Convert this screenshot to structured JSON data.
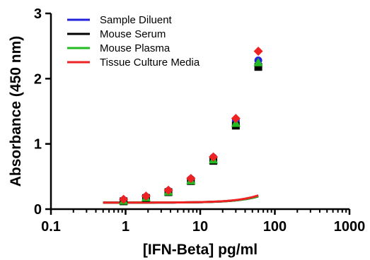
{
  "chart_data": {
    "type": "scatter",
    "xlabel": "[IFN-Beta] pg/ml",
    "ylabel": "Absorbance (450 nm)",
    "xscale": "log",
    "xlim": [
      0.1,
      1000
    ],
    "ylim": [
      0,
      3
    ],
    "x_ticks": [
      "0.1",
      "1",
      "10",
      "100",
      "1000"
    ],
    "y_ticks": [
      "0",
      "1",
      "2",
      "3"
    ],
    "grid": false,
    "legend_position": "top-left",
    "curve_x_range": [
      0.5,
      60
    ],
    "series": [
      {
        "name": "Sample Diluent",
        "color": "#2222dd",
        "marker": "circle",
        "x": [
          0.94,
          1.88,
          3.75,
          7.5,
          15,
          30,
          60
        ],
        "y": [
          0.14,
          0.19,
          0.28,
          0.46,
          0.79,
          1.36,
          2.28
        ],
        "curve": {
          "bottom": 0.1,
          "top": 20.0,
          "ec50": 2000,
          "hill": 1.5
        }
      },
      {
        "name": "Mouse Serum",
        "color": "#000000",
        "marker": "square",
        "x": [
          0.94,
          1.88,
          3.75,
          7.5,
          15,
          30,
          60
        ],
        "y": [
          0.12,
          0.17,
          0.26,
          0.43,
          0.74,
          1.28,
          2.18
        ],
        "curve": {
          "bottom": 0.1,
          "top": 20.0,
          "ec50": 2100,
          "hill": 1.5
        }
      },
      {
        "name": "Mouse Plasma",
        "color": "#22bb22",
        "marker": "triangle",
        "x": [
          0.94,
          1.88,
          3.75,
          7.5,
          15,
          30,
          60
        ],
        "y": [
          0.13,
          0.18,
          0.27,
          0.44,
          0.76,
          1.32,
          2.25
        ],
        "curve": {
          "bottom": 0.1,
          "top": 20.0,
          "ec50": 2050,
          "hill": 1.5
        }
      },
      {
        "name": "Tissue Culture Media",
        "color": "#ee2222",
        "marker": "diamond",
        "x": [
          0.94,
          1.88,
          3.75,
          7.5,
          15,
          30,
          60
        ],
        "y": [
          0.15,
          0.2,
          0.29,
          0.47,
          0.8,
          1.39,
          2.42
        ],
        "curve": {
          "bottom": 0.1,
          "top": 20.0,
          "ec50": 1900,
          "hill": 1.5
        }
      }
    ]
  }
}
